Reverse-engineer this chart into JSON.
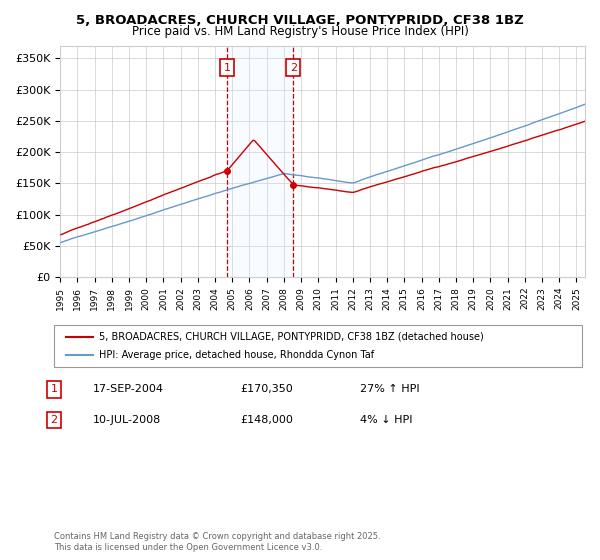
{
  "title": "5, BROADACRES, CHURCH VILLAGE, PONTYPRIDD, CF38 1BZ",
  "subtitle": "Price paid vs. HM Land Registry's House Price Index (HPI)",
  "ylabel_ticks": [
    "£0",
    "£50K",
    "£100K",
    "£150K",
    "£200K",
    "£250K",
    "£300K",
    "£350K"
  ],
  "ytick_values": [
    0,
    50000,
    100000,
    150000,
    200000,
    250000,
    300000,
    350000
  ],
  "ylim": [
    0,
    370000
  ],
  "sale1_date": "17-SEP-2004",
  "sale1_price": 170350,
  "sale1_hpi": "27% ↑ HPI",
  "sale2_date": "10-JUL-2008",
  "sale2_price": 148000,
  "sale2_hpi": "4% ↓ HPI",
  "legend_line1": "5, BROADACRES, CHURCH VILLAGE, PONTYPRIDD, CF38 1BZ (detached house)",
  "legend_line2": "HPI: Average price, detached house, Rhondda Cynon Taf",
  "footer": "Contains HM Land Registry data © Crown copyright and database right 2025.\nThis data is licensed under the Open Government Licence v3.0.",
  "line1_color": "#cc0000",
  "line2_color": "#6699cc",
  "shade_color": "#ddeeff",
  "vline_color": "#cc0000",
  "box_color": "#cc0000",
  "background_color": "#ffffff",
  "grid_color": "#cccccc"
}
